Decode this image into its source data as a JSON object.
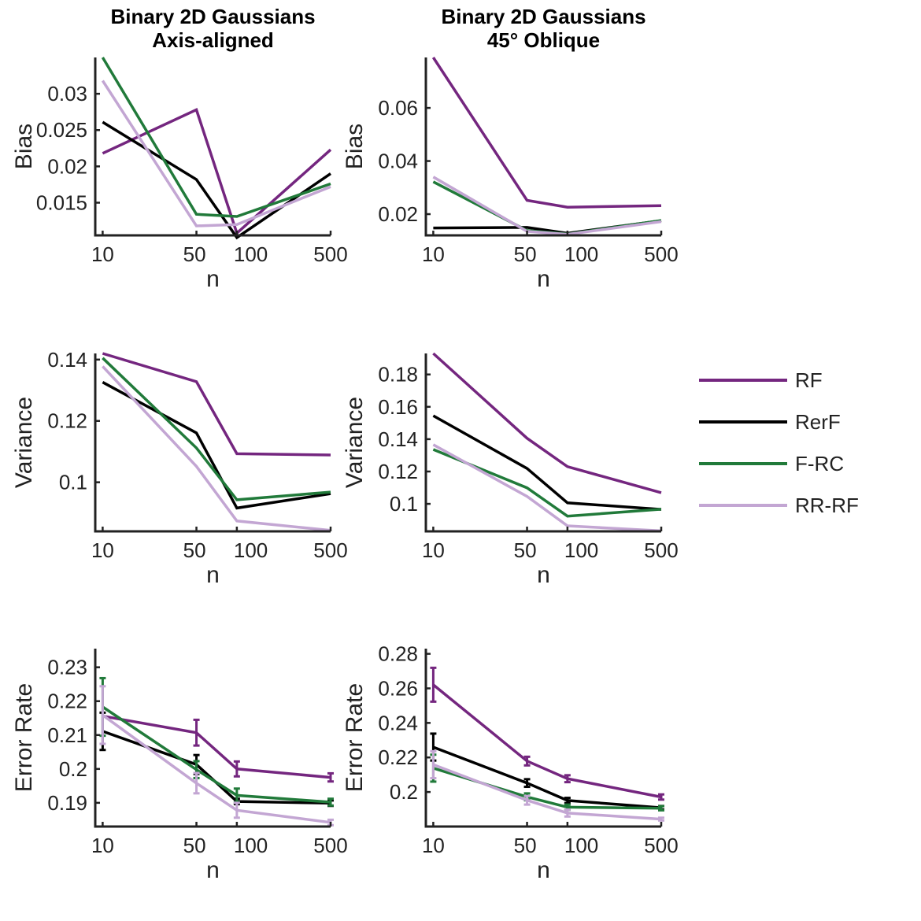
{
  "legend": [
    {
      "name": "RF",
      "color": "#74267f"
    },
    {
      "name": "RerF",
      "color": "#000000"
    },
    {
      "name": "F-RC",
      "color": "#217a3a"
    },
    {
      "name": "RR-RF",
      "color": "#c3a6d3"
    }
  ],
  "chart_data": [
    {
      "type": "line",
      "title": [
        "Binary 2D Gaussians",
        "Axis-aligned"
      ],
      "xlabel": "n",
      "ylabel": "Bias",
      "x": [
        10,
        50,
        100,
        500
      ],
      "xticklabels": [
        "10",
        "50",
        "100",
        "500"
      ],
      "xscale": "log",
      "ylim": [
        0.0105,
        0.035
      ],
      "yticks": [
        0.015,
        0.02,
        0.025,
        0.03
      ],
      "yticklabels": [
        "0.015",
        "0.02",
        "0.025",
        "0.03"
      ],
      "series": [
        {
          "name": "RF",
          "values": [
            0.0218,
            0.0278,
            0.0108,
            0.0223
          ]
        },
        {
          "name": "RerF",
          "values": [
            0.0261,
            0.0182,
            0.0102,
            0.019
          ]
        },
        {
          "name": "F-RC",
          "values": [
            0.035,
            0.0134,
            0.0131,
            0.0176
          ]
        },
        {
          "name": "RR-RF",
          "values": [
            0.0318,
            0.0118,
            0.012,
            0.0172
          ]
        }
      ]
    },
    {
      "type": "line",
      "title": [
        "Binary 2D Gaussians",
        "45° Oblique"
      ],
      "xlabel": "n",
      "ylabel": "Bias",
      "x": [
        10,
        50,
        100,
        500
      ],
      "xticklabels": [
        "10",
        "50",
        "100",
        "500"
      ],
      "xscale": "log",
      "ylim": [
        0.012,
        0.079
      ],
      "yticks": [
        0.02,
        0.04,
        0.06
      ],
      "yticklabels": [
        "0.02",
        "0.04",
        "0.06"
      ],
      "series": [
        {
          "name": "RF",
          "values": [
            0.079,
            0.0252,
            0.0226,
            0.0232
          ]
        },
        {
          "name": "RerF",
          "values": [
            0.0148,
            0.015,
            0.0128,
            0.0175
          ]
        },
        {
          "name": "F-RC",
          "values": [
            0.0322,
            0.0138,
            0.0125,
            0.0176
          ]
        },
        {
          "name": "RR-RF",
          "values": [
            0.034,
            0.0135,
            0.0124,
            0.0172
          ]
        }
      ]
    },
    {
      "type": "line",
      "title": [],
      "xlabel": "n",
      "ylabel": "Variance",
      "x": [
        10,
        50,
        100,
        500
      ],
      "xticklabels": [
        "10",
        "50",
        "100",
        "500"
      ],
      "xscale": "log",
      "ylim": [
        0.084,
        0.142
      ],
      "yticks": [
        0.1,
        0.12,
        0.14
      ],
      "yticklabels": [
        "0.1",
        "0.12",
        "0.14"
      ],
      "series": [
        {
          "name": "RF",
          "values": [
            0.142,
            0.1328,
            0.1093,
            0.1089
          ]
        },
        {
          "name": "RerF",
          "values": [
            0.1326,
            0.1161,
            0.0916,
            0.0963
          ]
        },
        {
          "name": "F-RC",
          "values": [
            0.1405,
            0.1112,
            0.0943,
            0.0968
          ]
        },
        {
          "name": "RR-RF",
          "values": [
            0.1378,
            0.1052,
            0.0874,
            0.0843
          ]
        }
      ]
    },
    {
      "type": "line",
      "title": [],
      "xlabel": "n",
      "ylabel": "Variance",
      "x": [
        10,
        50,
        100,
        500
      ],
      "xticklabels": [
        "10",
        "50",
        "100",
        "500"
      ],
      "xscale": "log",
      "ylim": [
        0.083,
        0.193
      ],
      "yticks": [
        0.1,
        0.12,
        0.14,
        0.16,
        0.18
      ],
      "yticklabels": [
        "0.1",
        "0.12",
        "0.14",
        "0.16",
        "0.18"
      ],
      "series": [
        {
          "name": "RF",
          "values": [
            0.193,
            0.1406,
            0.123,
            0.1069
          ]
        },
        {
          "name": "RerF",
          "values": [
            0.1545,
            0.1219,
            0.1006,
            0.0966
          ]
        },
        {
          "name": "F-RC",
          "values": [
            0.1336,
            0.1099,
            0.0924,
            0.0967
          ]
        },
        {
          "name": "RR-RF",
          "values": [
            0.1366,
            0.1046,
            0.0864,
            0.0833
          ]
        }
      ]
    },
    {
      "type": "line",
      "title": [],
      "xlabel": "n",
      "ylabel": "Error Rate",
      "x": [
        10,
        50,
        100,
        500
      ],
      "xticklabels": [
        "10",
        "50",
        "100",
        "500"
      ],
      "xscale": "log",
      "ylim": [
        0.183,
        0.2355
      ],
      "yticks": [
        0.19,
        0.2,
        0.21,
        0.22,
        0.23
      ],
      "yticklabels": [
        "0.19",
        "0.2",
        "0.21",
        "0.22",
        "0.23"
      ],
      "series": [
        {
          "name": "RF",
          "values": [
            0.2156,
            0.2107,
            0.2,
            0.1975
          ],
          "errors": [
            0.0,
            0.0038,
            0.0022,
            0.0012
          ]
        },
        {
          "name": "RerF",
          "values": [
            0.2111,
            0.2013,
            0.1904,
            0.1899
          ],
          "errors": [
            0.0055,
            0.0028,
            0.0008,
            0.0008
          ]
        },
        {
          "name": "F-RC",
          "values": [
            0.2183,
            0.1998,
            0.1922,
            0.1902
          ],
          "errors": [
            0.0085,
            0.0025,
            0.002,
            0.001
          ]
        },
        {
          "name": "RR-RF",
          "values": [
            0.2159,
            0.1958,
            0.1878,
            0.1842
          ],
          "errors": [
            0.0085,
            0.003,
            0.0022,
            0.0008
          ]
        }
      ]
    },
    {
      "type": "line",
      "title": [],
      "xlabel": "n",
      "ylabel": "Error Rate",
      "x": [
        10,
        50,
        100,
        500
      ],
      "xticklabels": [
        "10",
        "50",
        "100",
        "500"
      ],
      "xscale": "log",
      "ylim": [
        0.18,
        0.283
      ],
      "yticks": [
        0.2,
        0.22,
        0.24,
        0.26,
        0.28
      ],
      "yticklabels": [
        "0.2",
        "0.22",
        "0.24",
        "0.26",
        "0.28"
      ],
      "series": [
        {
          "name": "RF",
          "values": [
            0.2621,
            0.2179,
            0.2077,
            0.1971
          ],
          "errors": [
            0.0098,
            0.0025,
            0.002,
            0.0015
          ]
        },
        {
          "name": "RerF",
          "values": [
            0.226,
            0.2052,
            0.1951,
            0.1909
          ],
          "errors": [
            0.0078,
            0.0022,
            0.0015,
            0.001
          ]
        },
        {
          "name": "F-RC",
          "values": [
            0.2138,
            0.1972,
            0.1912,
            0.1906
          ],
          "errors": [
            0.0078,
            0.002,
            0.0015,
            0.0012
          ]
        },
        {
          "name": "RR-RF",
          "values": [
            0.2158,
            0.1952,
            0.1878,
            0.1843
          ],
          "errors": [
            0.0078,
            0.0025,
            0.002,
            0.0008
          ]
        }
      ]
    }
  ]
}
